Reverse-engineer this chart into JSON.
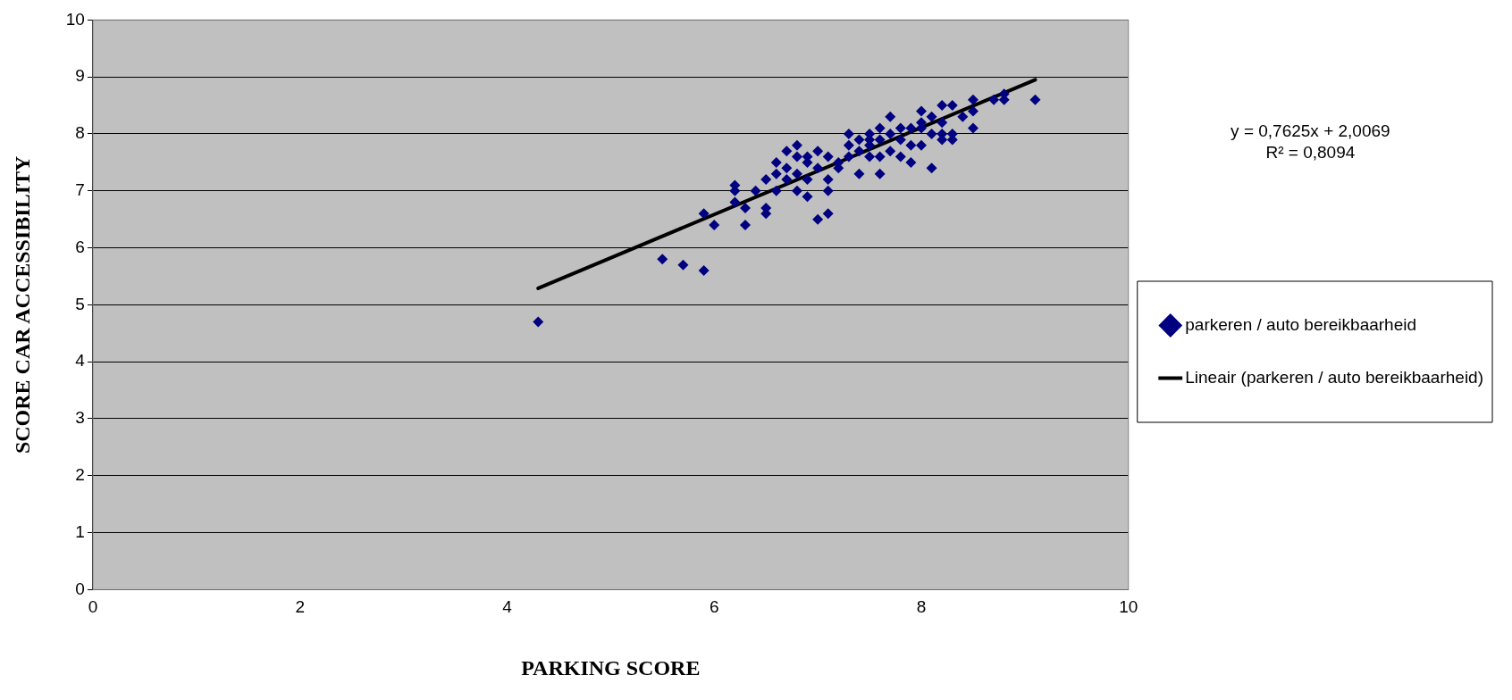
{
  "chart_data": {
    "type": "scatter",
    "xlabel": "PARKING SCORE",
    "ylabel": "SCORE CAR ACCESSIBILITY",
    "xlim": [
      0,
      10
    ],
    "xticks": [
      0,
      2,
      4,
      6,
      8,
      10
    ],
    "ylim": [
      0,
      10
    ],
    "yticks": [
      0,
      1,
      2,
      3,
      4,
      5,
      6,
      7,
      8,
      9,
      10
    ],
    "grid": "y",
    "legend": "right",
    "annotations": [
      "y = 0,7625x + 2,0069",
      "R² = 0,8094"
    ],
    "series": [
      {
        "name": "parkeren / auto bereikbaarheid",
        "marker": "diamond",
        "color": "#000080",
        "x": [
          4.3,
          5.5,
          5.7,
          5.9,
          5.9,
          6.0,
          6.2,
          6.2,
          6.2,
          6.3,
          6.3,
          6.4,
          6.5,
          6.5,
          6.5,
          6.6,
          6.6,
          6.6,
          6.7,
          6.7,
          6.7,
          6.8,
          6.8,
          6.8,
          6.8,
          6.9,
          6.9,
          6.9,
          7.0,
          7.0,
          7.0,
          7.1,
          7.1,
          7.1,
          7.1,
          7.2,
          7.3,
          7.3,
          7.3,
          7.4,
          7.4,
          7.4,
          7.5,
          7.5,
          7.5,
          7.6,
          7.6,
          7.6,
          7.7,
          7.7,
          7.7,
          7.8,
          7.8,
          7.8,
          7.9,
          7.9,
          8.0,
          8.0,
          8.0,
          8.1,
          8.1,
          8.1,
          8.2,
          8.2,
          8.2,
          8.3,
          8.3,
          8.3,
          8.4,
          8.5,
          8.5,
          8.5,
          8.7,
          8.8,
          8.8,
          9.1,
          7.6,
          7.2,
          6.9,
          7.5,
          8.0,
          7.9,
          8.2
        ],
        "values": [
          4.7,
          5.8,
          5.7,
          5.6,
          6.6,
          6.4,
          7.1,
          7.0,
          6.8,
          6.7,
          6.4,
          7.0,
          6.6,
          6.7,
          7.2,
          7.3,
          7.5,
          7.0,
          7.7,
          7.2,
          7.4,
          7.8,
          7.0,
          7.3,
          7.6,
          6.9,
          7.5,
          7.2,
          7.7,
          6.5,
          7.4,
          6.6,
          7.0,
          7.2,
          7.6,
          7.4,
          7.6,
          7.8,
          8.0,
          7.3,
          7.9,
          7.7,
          8.0,
          7.8,
          7.6,
          7.3,
          8.1,
          7.9,
          8.3,
          7.7,
          8.0,
          7.6,
          8.1,
          7.9,
          7.5,
          7.8,
          8.4,
          8.1,
          7.8,
          7.4,
          8.3,
          8.0,
          8.5,
          8.2,
          7.9,
          8.5,
          8.0,
          7.9,
          8.3,
          8.6,
          8.1,
          8.4,
          8.6,
          8.7,
          8.6,
          8.6,
          7.6,
          7.5,
          7.6,
          7.9,
          8.2,
          8.1,
          8.0
        ]
      },
      {
        "name": "Lineair (parkeren / auto bereikbaarheid)",
        "type": "line",
        "marker": "none",
        "color": "#000000",
        "x": [
          4.3,
          9.1
        ],
        "values": [
          5.29,
          8.95
        ]
      }
    ]
  }
}
